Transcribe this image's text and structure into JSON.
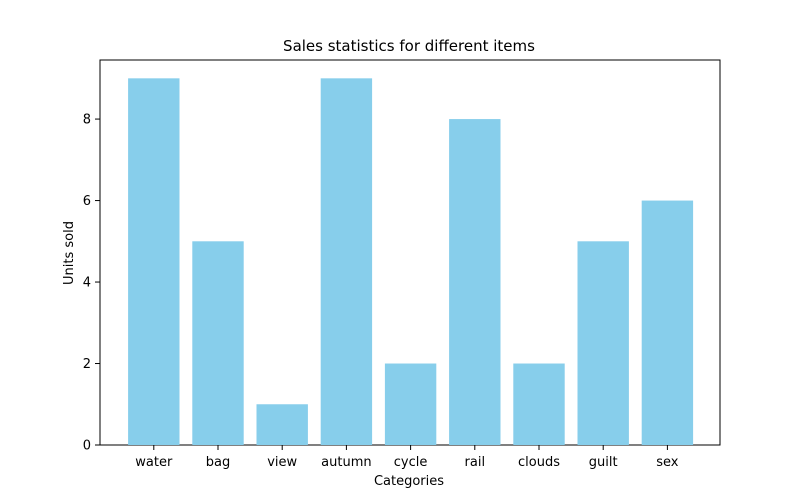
{
  "chart_data": {
    "type": "bar",
    "title": "Sales statistics for different items",
    "xlabel": "Categories",
    "ylabel": "Units sold",
    "categories": [
      "water",
      "bag",
      "view",
      "autumn",
      "cycle",
      "rail",
      "clouds",
      "guilt",
      "sex"
    ],
    "values": [
      9,
      5,
      1,
      9,
      2,
      8,
      2,
      5,
      6
    ],
    "ylim": [
      0,
      9.45
    ],
    "yticks": [
      0,
      2,
      4,
      6,
      8
    ],
    "grid": false,
    "legend": "none",
    "bar_color": "#87CEEB"
  }
}
